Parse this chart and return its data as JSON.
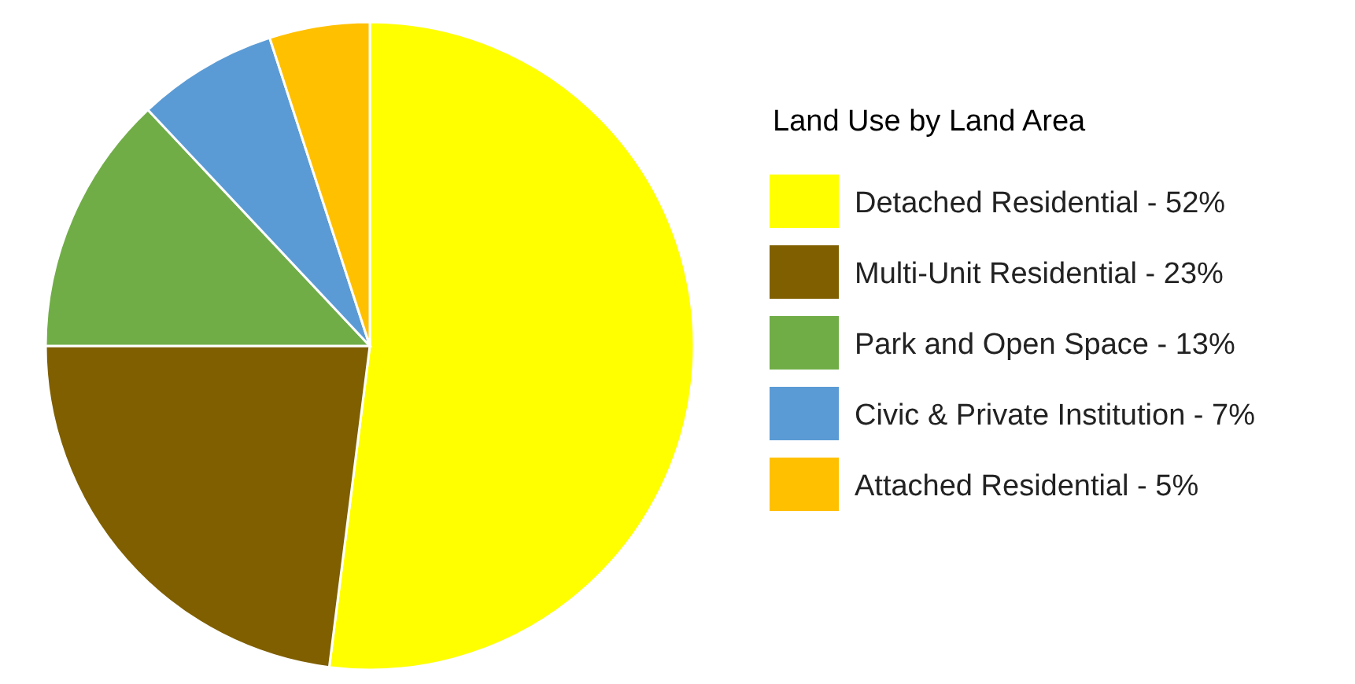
{
  "chart_data": {
    "type": "pie",
    "legend_title": "Land Use by Land Area",
    "legend": "right",
    "categories": [
      "Detached Residential - 52%",
      "Multi-Unit Residential - 23%",
      "Park and Open Space - 13%",
      "Civic & Private Institution - 7%",
      "Attached Residential - 5%"
    ],
    "values": [
      52,
      23,
      13,
      7,
      5
    ],
    "colors": [
      "#ffff00",
      "#7f5f00",
      "#70ad47",
      "#5b9bd5",
      "#ffc000"
    ]
  }
}
